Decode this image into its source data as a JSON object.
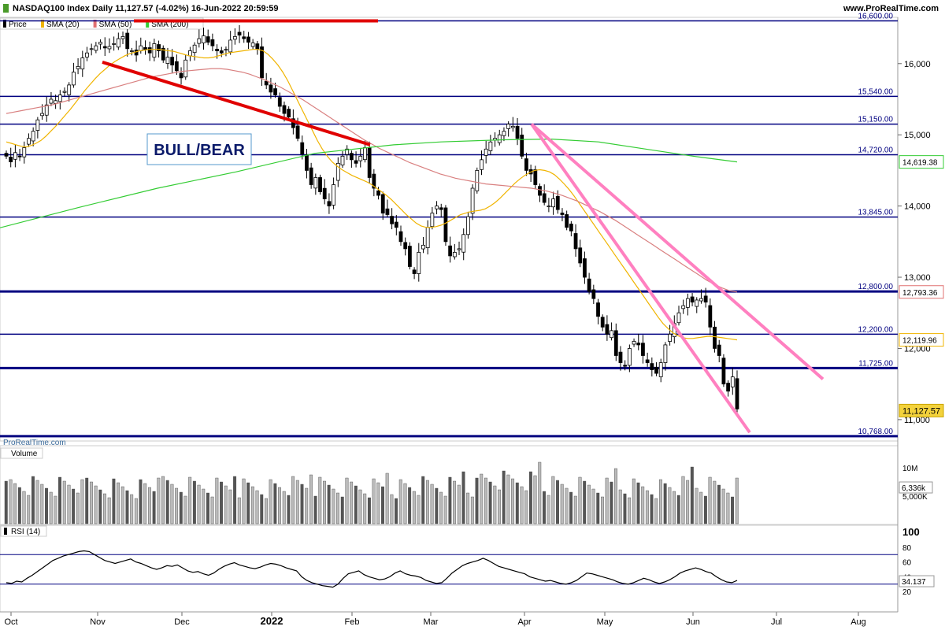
{
  "header": {
    "title": "NASDAQ100 Index Daily 11,127.57 (-4.02%) 16-Jun-2022 20:59:59",
    "site": "www.ProRealTime.com"
  },
  "legend": [
    {
      "label": "Price",
      "color": "#000000"
    },
    {
      "label": "SMA (20)",
      "color": "#f0b400"
    },
    {
      "label": "SMA (50)",
      "color": "#e07070"
    },
    {
      "label": "SMA (200)",
      "color": "#33cc33"
    }
  ],
  "watermark": "ProRealTime.com",
  "annotation": "BULL/BEAR",
  "colors": {
    "up": "#ffffff",
    "down": "#000000",
    "sma20": "#f0b400",
    "sma50": "#d98080",
    "sma200": "#33cc33",
    "level": "#000080",
    "redLine": "#e00000",
    "pinkLine": "#ff80c0",
    "volBarLight": "#bbbbbb",
    "volBarDark": "#555555"
  },
  "chart_data": [
    {
      "type": "line",
      "title": "NASDAQ100 Index Daily",
      "x_labels": [
        "Oct",
        "Nov",
        "Dec",
        "2022",
        "Feb",
        "Mar",
        "Apr",
        "May",
        "Jun",
        "Jul",
        "Aug"
      ],
      "ylim": [
        10700,
        16650
      ],
      "y_ticks": [
        11000,
        12000,
        13000,
        14000,
        15000,
        16000
      ],
      "levels": [
        16600,
        15540,
        15150,
        14720,
        13845,
        12800,
        12200,
        11725,
        10768
      ],
      "level_labels": [
        "16,600.00",
        "15,540.00",
        "15,150.00",
        "14,720.00",
        "13,845.00",
        "12,800.00",
        "12,200.00",
        "11,725.00",
        "10,768.00"
      ],
      "last_values": {
        "price": "11,127.57",
        "sma200": "14,619.38",
        "sma50": "12,793.36",
        "sma20": "12,119.96"
      },
      "close_series": [
        14700,
        14620,
        14750,
        14690,
        14820,
        14950,
        15050,
        15210,
        15300,
        15420,
        15500,
        15480,
        15560,
        15610,
        15700,
        15880,
        15960,
        16080,
        16150,
        16210,
        16250,
        16300,
        16220,
        16240,
        16280,
        16350,
        16380,
        16210,
        16180,
        16120,
        16250,
        16200,
        16150,
        16280,
        16180,
        16050,
        16090,
        15980,
        15900,
        15800,
        16050,
        16180,
        16260,
        16350,
        16390,
        16300,
        16250,
        16180,
        16150,
        16200,
        16330,
        16380,
        16400,
        16350,
        16300,
        16290,
        16200,
        15800,
        15700,
        15600,
        15560,
        15400,
        15300,
        15250,
        15100,
        14950,
        14730,
        14500,
        14300,
        14400,
        14200,
        14100,
        14000,
        14300,
        14600,
        14700,
        14800,
        14650,
        14600,
        14700,
        14820,
        14400,
        14250,
        14150,
        13900,
        13880,
        13750,
        13700,
        13500,
        13400,
        13150,
        13050,
        13350,
        13450,
        13700,
        13900,
        14000,
        13950,
        13500,
        13300,
        13350,
        13400,
        13600,
        13850,
        14250,
        14500,
        14650,
        14800,
        14900,
        14950,
        15000,
        15050,
        15150,
        15120,
        14950,
        14700,
        14500,
        14450,
        14300,
        14150,
        14050,
        14000,
        14100,
        13950,
        13880,
        13700,
        13650,
        13400,
        13200,
        13000,
        12800,
        12700,
        12450,
        12300,
        12200,
        12250,
        11900,
        11800,
        11750,
        12000,
        12100,
        12050,
        11900,
        11800,
        11700,
        11650,
        11800,
        12050,
        12200,
        12350,
        12500,
        12600,
        12700,
        12650,
        12680,
        12700,
        12650,
        12300,
        12000,
        11900,
        11500,
        11400,
        11600,
        11150
      ],
      "sma20_series": [
        14900,
        14880,
        14860,
        14840,
        14830,
        14850,
        14880,
        14920,
        14980,
        15050,
        15120,
        15200,
        15280,
        15360,
        15450,
        15540,
        15630,
        15710,
        15790,
        15860,
        15920,
        15980,
        16030,
        16070,
        16110,
        16140,
        16160,
        16180,
        16190,
        16200,
        16200,
        16200,
        16190,
        16180,
        16170,
        16150,
        16130,
        16110,
        16100,
        16090,
        16080,
        16080,
        16090,
        16110,
        16130,
        16150,
        16160,
        16170,
        16180,
        16190,
        16200,
        16200,
        16180,
        16130,
        16060,
        15980,
        15880,
        15760,
        15620,
        15480,
        15340,
        15200,
        15060,
        14920,
        14800,
        14700,
        14620,
        14560,
        14510,
        14470,
        14430,
        14400,
        14370,
        14340,
        14300,
        14250,
        14200,
        14150,
        14090,
        14020,
        13950,
        13880,
        13820,
        13760,
        13720,
        13700,
        13700,
        13710,
        13730,
        13760,
        13800,
        13840,
        13880,
        13900,
        13920,
        13930,
        13940,
        13960,
        14000,
        14050,
        14110,
        14180,
        14250,
        14320,
        14380,
        14430,
        14470,
        14500,
        14510,
        14500,
        14480,
        14440,
        14380,
        14310,
        14230,
        14140,
        14040,
        13940,
        13840,
        13740,
        13640,
        13540,
        13440,
        13340,
        13240,
        13140,
        13040,
        12940,
        12840,
        12740,
        12640,
        12540,
        12440,
        12350,
        12280,
        12220,
        12180,
        12150,
        12140,
        12140,
        12150,
        12160,
        12170,
        12170,
        12160,
        12150,
        12140,
        12130,
        12120
      ],
      "sma50_series": [
        15300,
        15320,
        15340,
        15360,
        15380,
        15400,
        15420,
        15450,
        15480,
        15510,
        15540,
        15570,
        15600,
        15630,
        15660,
        15690,
        15720,
        15750,
        15780,
        15810,
        15830,
        15850,
        15870,
        15890,
        15900,
        15910,
        15920,
        15930,
        15930,
        15920,
        15900,
        15880,
        15850,
        15810,
        15770,
        15720,
        15670,
        15610,
        15550,
        15490,
        15420,
        15350,
        15280,
        15210,
        15140,
        15070,
        15000,
        14930,
        14870,
        14810,
        14760,
        14710,
        14660,
        14610,
        14570,
        14530,
        14490,
        14450,
        14420,
        14390,
        14370,
        14350,
        14330,
        14310,
        14300,
        14290,
        14280,
        14270,
        14260,
        14250,
        14230,
        14210,
        14180,
        14150,
        14110,
        14070,
        14020,
        13970,
        13920,
        13860,
        13800,
        13730,
        13660,
        13590,
        13520,
        13450,
        13380,
        13310,
        13240,
        13170,
        13100,
        13030,
        12960,
        12900,
        12850,
        12810,
        12793
      ]
    },
    {
      "type": "bar",
      "title": "Volume",
      "y_ticks_labels": [
        "10M",
        "5,000K"
      ],
      "last_value": "6,336k"
    },
    {
      "type": "line",
      "title": "RSI (14)",
      "y_ticks": [
        100,
        80,
        60,
        40,
        20
      ],
      "ylim": [
        0,
        100
      ],
      "levels": [
        70,
        30
      ],
      "last_value": "34.137",
      "series": [
        32,
        31,
        34,
        33,
        38,
        42,
        47,
        52,
        57,
        62,
        65,
        68,
        70,
        72,
        74,
        75,
        74,
        70,
        66,
        62,
        60,
        58,
        60,
        62,
        64,
        60,
        58,
        55,
        52,
        50,
        52,
        55,
        54,
        56,
        52,
        48,
        46,
        47,
        44,
        42,
        45,
        50,
        54,
        57,
        59,
        56,
        54,
        52,
        51,
        53,
        56,
        58,
        57,
        55,
        52,
        50,
        48,
        40,
        35,
        32,
        30,
        28,
        27,
        26,
        30,
        38,
        44,
        46,
        48,
        43,
        40,
        38,
        36,
        37,
        40,
        45,
        48,
        44,
        42,
        41,
        39,
        35,
        33,
        31,
        32,
        38,
        45,
        50,
        55,
        58,
        60,
        62,
        65,
        62,
        58,
        54,
        52,
        50,
        48,
        46,
        44,
        40,
        38,
        36,
        34,
        35,
        33,
        31,
        30,
        32,
        35,
        40,
        45,
        44,
        42,
        40,
        38,
        36,
        33,
        31,
        30,
        32,
        35,
        38,
        36,
        33,
        31,
        33,
        36,
        40,
        45,
        48,
        50,
        52,
        50,
        47,
        45,
        40,
        36,
        33,
        32,
        35
      ]
    }
  ]
}
